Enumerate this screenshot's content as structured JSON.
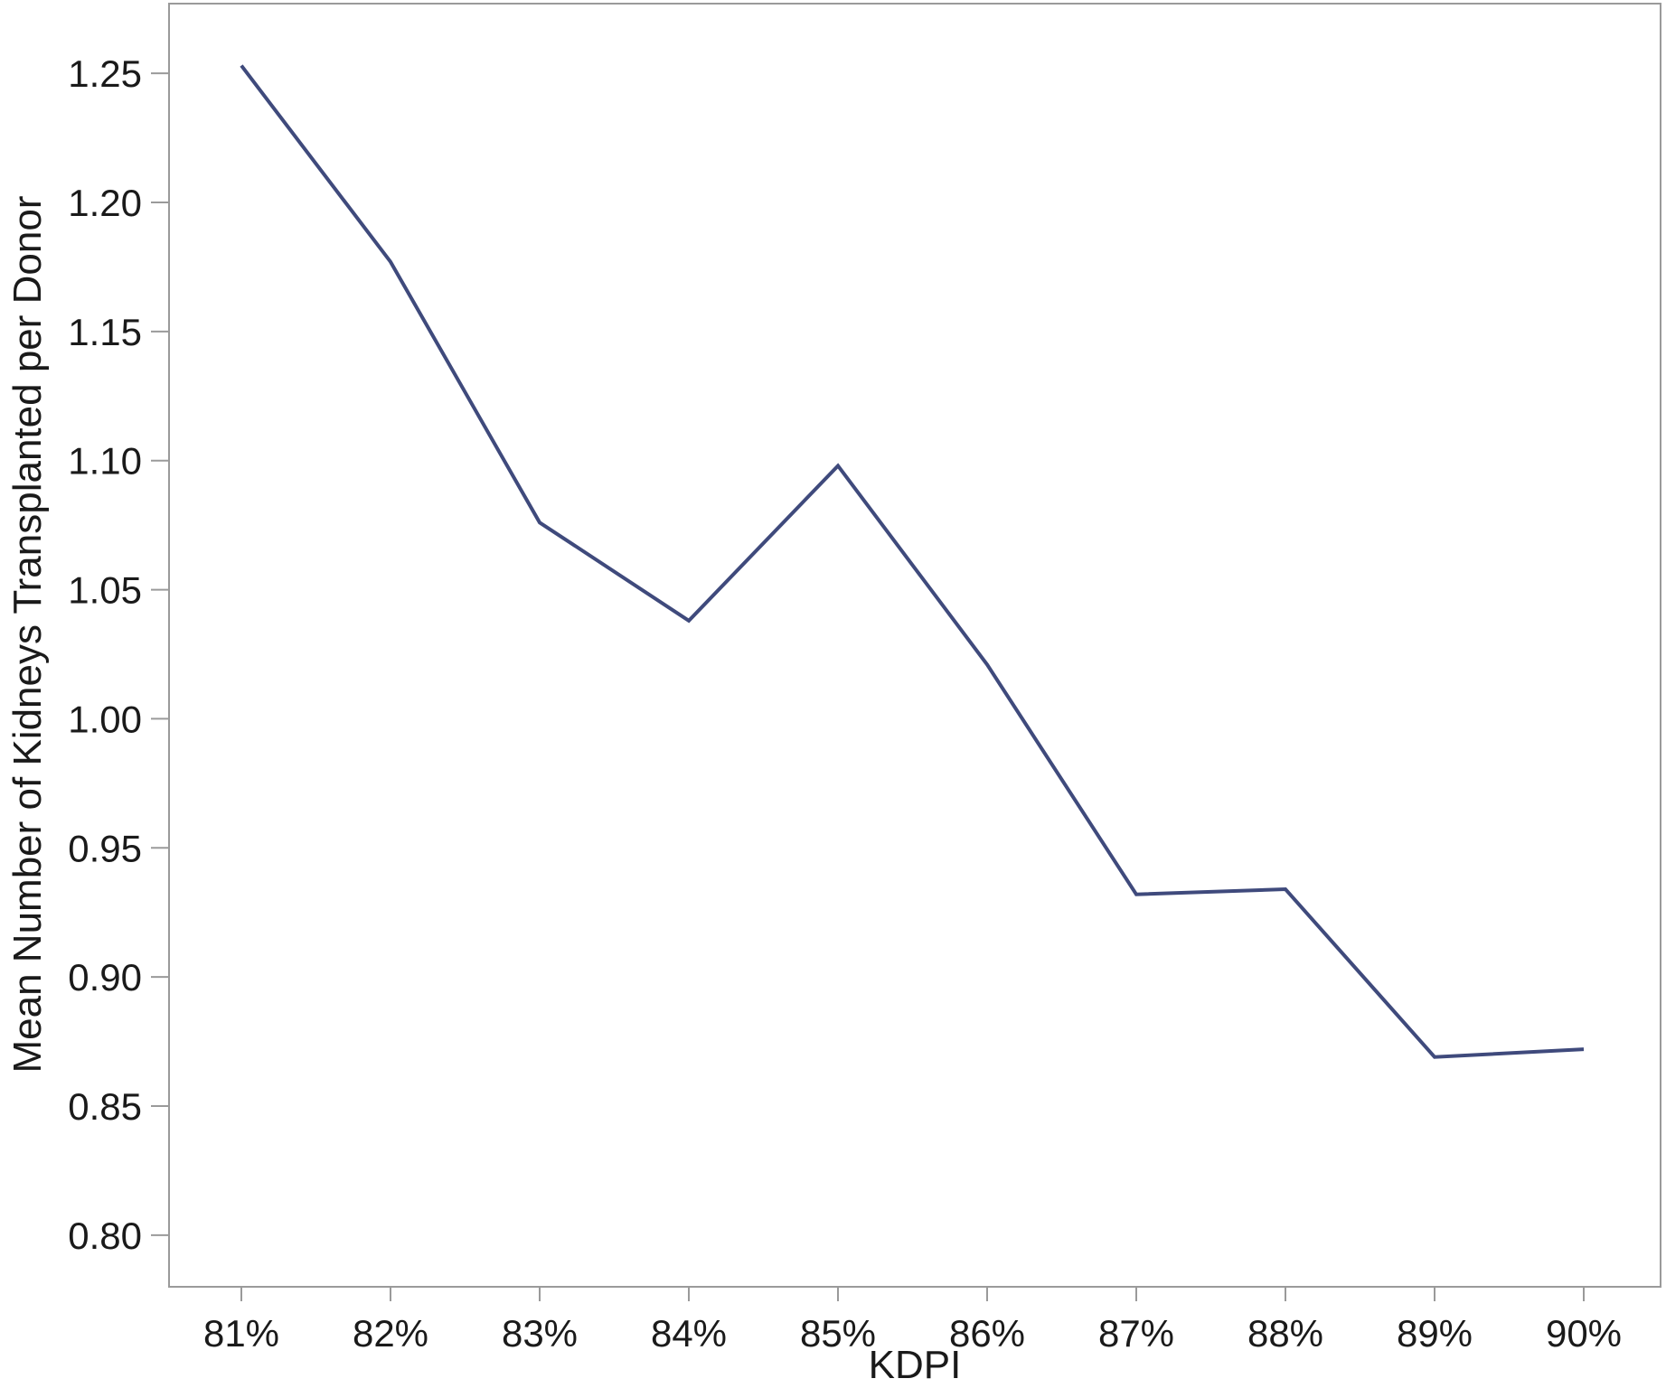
{
  "chart_data": {
    "type": "line",
    "title": "",
    "xlabel": "KDPI",
    "ylabel": "Mean Number of Kidneys Transplanted per Donor",
    "categories": [
      "81%",
      "82%",
      "83%",
      "84%",
      "85%",
      "86%",
      "87%",
      "88%",
      "89%",
      "90%"
    ],
    "series": [
      {
        "values": [
          1.253,
          1.177,
          1.076,
          1.038,
          1.098,
          1.021,
          0.932,
          0.934,
          0.869,
          0.872
        ]
      }
    ],
    "ylim": [
      0.78,
      1.277
    ],
    "yticks": [
      0.8,
      0.85,
      0.9,
      0.95,
      1.0,
      1.05,
      1.1,
      1.15,
      1.2,
      1.25
    ],
    "ytick_labels": [
      "0.80",
      "0.85",
      "0.90",
      "0.95",
      "1.00",
      "1.05",
      "1.10",
      "1.15",
      "1.20",
      "1.25"
    ],
    "grid": false,
    "legend": "none",
    "colors": {
      "line": "#3f4a7c",
      "frame": "#9a9a9a",
      "text": "#1a1a1a"
    }
  }
}
